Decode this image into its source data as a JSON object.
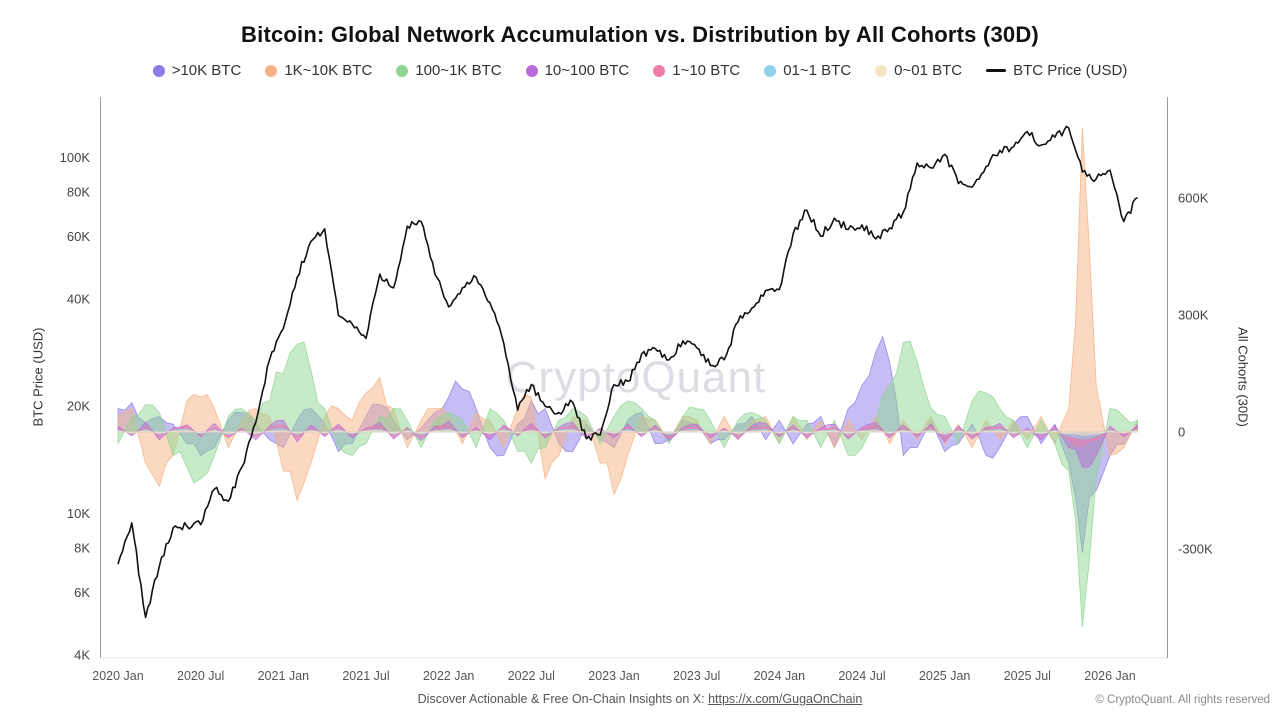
{
  "title": "Bitcoin: Global Network Accumulation vs. Distribution by All Cohorts (30D)",
  "watermark": "CryptoQuant",
  "footer": {
    "insights_prefix": "Discover Actionable & Free On-Chain Insights on X: ",
    "insights_link": "https://x.com/GugaOnChain",
    "copyright": "© CryptoQuant. All rights reserved"
  },
  "axes": {
    "left_title": "BTC Price (USD)",
    "right_title": "All Cohorts (30D)",
    "left_ticks": [
      {
        "label": "100K",
        "value": 100
      },
      {
        "label": "80K",
        "value": 80
      },
      {
        "label": "60K",
        "value": 60
      },
      {
        "label": "40K",
        "value": 40
      },
      {
        "label": "20K",
        "value": 20
      },
      {
        "label": "10K",
        "value": 10
      },
      {
        "label": "8K",
        "value": 8
      },
      {
        "label": "6K",
        "value": 6
      },
      {
        "label": "4K",
        "value": 4
      }
    ],
    "right_ticks": [
      {
        "label": "600K",
        "value": 600
      },
      {
        "label": "300K",
        "value": 300
      },
      {
        "label": "0",
        "value": 0
      },
      {
        "label": "-300K",
        "value": -300
      }
    ],
    "x_ticks": [
      {
        "label": "2020 Jan",
        "index": 0
      },
      {
        "label": "2020 Jul",
        "index": 6
      },
      {
        "label": "2021 Jan",
        "index": 12
      },
      {
        "label": "2021 Jul",
        "index": 18
      },
      {
        "label": "2022 Jan",
        "index": 24
      },
      {
        "label": "2022 Jul",
        "index": 30
      },
      {
        "label": "2023 Jan",
        "index": 36
      },
      {
        "label": "2023 Jul",
        "index": 42
      },
      {
        "label": "2024 Jan",
        "index": 48
      },
      {
        "label": "2024 Jul",
        "index": 54
      },
      {
        "label": "2025 Jan",
        "index": 60
      },
      {
        "label": "2025 Jul",
        "index": 66
      },
      {
        "label": "2026 Jan",
        "index": 72
      }
    ]
  },
  "chart_data": {
    "type": "area",
    "subtype": "overlapping-areas-plus-log-price-line",
    "x_start": "2020-01",
    "x_interval": "1 month",
    "n_points": 75,
    "left_axis": {
      "scale": "log",
      "unit": "K USD",
      "range_k": [
        4,
        145
      ]
    },
    "right_axis": {
      "scale": "linear",
      "unit": "K (All Cohorts 30D)",
      "range_k": [
        -570,
        850
      ]
    },
    "legend_position": "top",
    "grid": false,
    "series": [
      {
        "name": ">10K BTC",
        "type": "area",
        "axis": "right",
        "color": "#8b7ce8",
        "values": [
          60,
          75,
          25,
          40,
          20,
          -30,
          -60,
          -40,
          30,
          50,
          20,
          -20,
          -40,
          30,
          60,
          20,
          -50,
          -30,
          40,
          70,
          30,
          -20,
          10,
          50,
          90,
          110,
          60,
          -40,
          -60,
          20,
          80,
          60,
          -30,
          -50,
          20,
          -20,
          -40,
          30,
          50,
          -30,
          -20,
          30,
          20,
          -30,
          -20,
          20,
          40,
          -20,
          30,
          -30,
          20,
          40,
          -40,
          60,
          120,
          205,
          180,
          -60,
          -40,
          30,
          -50,
          -30,
          20,
          -60,
          -40,
          20,
          40,
          -30,
          20,
          -80,
          -310,
          -150,
          -60,
          -30,
          20
        ]
      },
      {
        "name": "1K~10K BTC",
        "type": "area",
        "axis": "right",
        "color": "#f5b183",
        "values": [
          40,
          60,
          -80,
          -140,
          -60,
          80,
          90,
          60,
          -40,
          30,
          60,
          40,
          -100,
          -175,
          -80,
          40,
          60,
          30,
          100,
          140,
          60,
          -40,
          30,
          60,
          40,
          -30,
          50,
          30,
          -40,
          60,
          90,
          -120,
          -60,
          40,
          30,
          -80,
          -160,
          -60,
          40,
          30,
          -20,
          40,
          30,
          -30,
          40,
          -20,
          30,
          40,
          -30,
          40,
          -20,
          30,
          -40,
          30,
          -20,
          40,
          -30,
          30,
          -20,
          40,
          -30,
          20,
          -40,
          30,
          -20,
          30,
          -20,
          40,
          -30,
          60,
          780,
          120,
          -60,
          -40,
          30
        ]
      },
      {
        "name": "100~1K BTC",
        "type": "area",
        "axis": "right",
        "color": "#8fd694",
        "values": [
          -30,
          40,
          70,
          50,
          -60,
          -90,
          -120,
          -60,
          40,
          60,
          30,
          80,
          150,
          225,
          160,
          60,
          -40,
          -60,
          -30,
          40,
          60,
          30,
          -40,
          30,
          50,
          30,
          -40,
          60,
          30,
          -50,
          -80,
          -40,
          30,
          60,
          40,
          -30,
          40,
          80,
          60,
          30,
          -30,
          40,
          60,
          30,
          -40,
          30,
          50,
          30,
          -30,
          40,
          30,
          -40,
          30,
          -60,
          -40,
          30,
          120,
          230,
          180,
          60,
          40,
          -30,
          80,
          100,
          60,
          30,
          -40,
          30,
          -30,
          -100,
          -500,
          -120,
          60,
          40,
          30
        ]
      },
      {
        "name": "10~100 BTC",
        "type": "area",
        "axis": "right",
        "color": "#bb6bd9",
        "values": [
          15,
          -10,
          25,
          -20,
          10,
          18,
          -12,
          22,
          -15,
          10,
          -20,
          15,
          30,
          -25,
          18,
          -12,
          20,
          -15,
          10,
          25,
          -18,
          12,
          -22,
          15,
          28,
          -15,
          12,
          -20,
          18,
          -10,
          22,
          -15,
          12,
          25,
          -18,
          10,
          -15,
          20,
          -12,
          18,
          -22,
          12,
          20,
          -15,
          10,
          -18,
          15,
          22,
          -12,
          18,
          -15,
          10,
          20,
          -18,
          12,
          25,
          -15,
          18,
          -12,
          20,
          -25,
          15,
          -18,
          12,
          22,
          -15,
          10,
          -20,
          18,
          -40,
          -90,
          -60,
          15,
          -12,
          18
        ]
      },
      {
        "name": "1~10 BTC",
        "type": "area",
        "axis": "right",
        "color": "#f07ca8",
        "values": [
          10,
          -8,
          14,
          -12,
          8,
          15,
          -10,
          12,
          -14,
          8,
          -12,
          10,
          18,
          -15,
          12,
          -8,
          14,
          -10,
          8,
          15,
          -12,
          10,
          -14,
          8,
          16,
          -10,
          8,
          -12,
          14,
          -8,
          12,
          -10,
          8,
          15,
          -12,
          8,
          -10,
          14,
          -8,
          12,
          -15,
          8,
          12,
          -10,
          8,
          -12,
          10,
          14,
          -8,
          12,
          -10,
          8,
          12,
          -14,
          8,
          15,
          -10,
          12,
          -8,
          14,
          -15,
          10,
          -12,
          8,
          14,
          -10,
          8,
          -12,
          10,
          -20,
          -35,
          -20,
          10,
          -8,
          12
        ]
      },
      {
        "name": "01~1 BTC",
        "type": "area",
        "axis": "right",
        "color": "#8ed3ee",
        "values": [
          5,
          -4,
          7,
          -6,
          4,
          8,
          -5,
          6,
          -7,
          4,
          -6,
          5,
          9,
          -7,
          6,
          -4,
          7,
          -5,
          4,
          8,
          -6,
          5,
          -7,
          4,
          8,
          -5,
          4,
          -6,
          7,
          -4,
          6,
          -5,
          4,
          8,
          -6,
          4,
          -5,
          7,
          -4,
          6,
          -8,
          4,
          6,
          -5,
          4,
          -6,
          5,
          7,
          -4,
          6,
          -5,
          4,
          6,
          -7,
          4,
          8,
          -5,
          6,
          -4,
          7,
          -8,
          5,
          -6,
          4,
          7,
          -5,
          4,
          -6,
          5,
          -10,
          -18,
          -10,
          5,
          -4,
          6
        ]
      },
      {
        "name": "0~01 BTC",
        "type": "area",
        "axis": "right",
        "color": "#f6e3c1",
        "values": [
          2,
          -2,
          3,
          -3,
          2,
          4,
          -2,
          3,
          -3,
          2,
          -3,
          2,
          4,
          -3,
          3,
          -2,
          3,
          -2,
          2,
          4,
          -3,
          2,
          -3,
          2,
          4,
          -2,
          2,
          -3,
          3,
          -2,
          3,
          -2,
          2,
          4,
          -3,
          2,
          -2,
          3,
          -2,
          3,
          -4,
          2,
          3,
          -2,
          2,
          -3,
          2,
          3,
          -2,
          3,
          -2,
          2,
          3,
          -3,
          2,
          4,
          -2,
          3,
          -2,
          3,
          -4,
          2,
          -3,
          2,
          3,
          -2,
          2,
          -3,
          2,
          -5,
          -8,
          -5,
          2,
          -2,
          3
        ]
      },
      {
        "name": "BTC Price (USD)",
        "type": "line",
        "axis": "left",
        "color": "#111111",
        "values": [
          7.2,
          9.4,
          5.1,
          7.1,
          9.1,
          9.2,
          9.3,
          11.7,
          10.8,
          13.5,
          18,
          27,
          33,
          46,
          58,
          63,
          36,
          34,
          31,
          47,
          43,
          64,
          66,
          47,
          38,
          43,
          46,
          39,
          30,
          19.5,
          23,
          20,
          19.2,
          20.5,
          16.2,
          16.6,
          23,
          23.5,
          28,
          29,
          27,
          30.5,
          29.2,
          26,
          27,
          34.5,
          37.7,
          42.3,
          42.5,
          61,
          71,
          60,
          67.5,
          62.7,
          64.6,
          59,
          63.3,
          70.2,
          96.4,
          93.4,
          102,
          84.4,
          82.5,
          94.2,
          104.6,
          107.1,
          118,
          108.2,
          114,
          121,
          91,
          87,
          92,
          66,
          77
        ]
      }
    ]
  }
}
